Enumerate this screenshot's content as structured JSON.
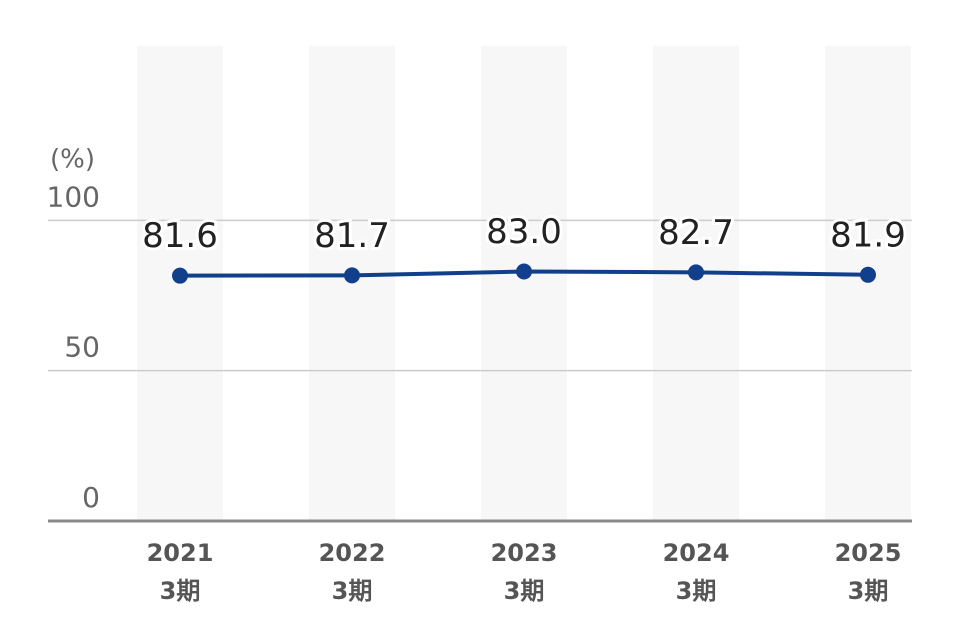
{
  "chart_data": {
    "type": "line",
    "y_unit_label": "(%)",
    "categories": [
      "2021",
      "2022",
      "2023",
      "2024",
      "2025"
    ],
    "category_sublabels": [
      "3期",
      "3期",
      "3期",
      "3期",
      "3期"
    ],
    "series": [
      {
        "color": "#123f8c",
        "values": [
          81.6,
          81.7,
          83.0,
          82.7,
          81.9
        ],
        "value_labels": [
          "81.6",
          "81.7",
          "83.0",
          "82.7",
          "81.9"
        ]
      }
    ],
    "ylim": [
      0,
      158
    ],
    "yticks": [
      0,
      50,
      100
    ],
    "grid": true
  }
}
